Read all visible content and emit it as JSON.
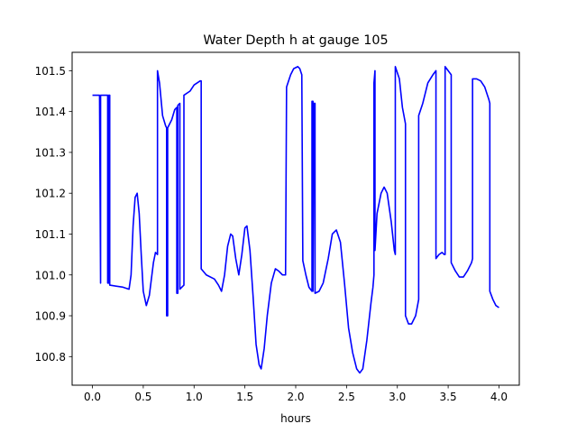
{
  "chart_data": {
    "type": "line",
    "title": "Water Depth h at gauge 105",
    "xlabel": "hours",
    "ylabel": "",
    "xlim": [
      -0.2,
      4.2
    ],
    "ylim": [
      100.73,
      101.545
    ],
    "xticks": [
      0.0,
      0.5,
      1.0,
      1.5,
      2.0,
      2.5,
      3.0,
      3.5,
      4.0
    ],
    "xtick_labels": [
      "0.0",
      "0.5",
      "1.0",
      "1.5",
      "2.0",
      "2.5",
      "3.0",
      "3.5",
      "4.0"
    ],
    "yticks": [
      100.8,
      100.9,
      101.0,
      101.1,
      101.2,
      101.3,
      101.4,
      101.5
    ],
    "ytick_labels": [
      "100.8",
      "100.9",
      "101.0",
      "101.1",
      "101.2",
      "101.3",
      "101.4",
      "101.5"
    ],
    "grid": false,
    "legend": "none",
    "series": [
      {
        "color": "#0000ff",
        "points": [
          [
            0.0,
            101.44
          ],
          [
            0.07,
            101.44
          ],
          [
            0.07,
            101.43
          ],
          [
            0.08,
            100.98
          ],
          [
            0.08,
            101.44
          ],
          [
            0.15,
            101.44
          ],
          [
            0.15,
            100.98
          ],
          [
            0.16,
            100.98
          ],
          [
            0.16,
            101.44
          ],
          [
            0.17,
            101.44
          ],
          [
            0.17,
            100.975
          ],
          [
            0.3,
            100.97
          ],
          [
            0.36,
            100.965
          ],
          [
            0.38,
            101.0
          ],
          [
            0.4,
            101.12
          ],
          [
            0.42,
            101.19
          ],
          [
            0.44,
            101.2
          ],
          [
            0.46,
            101.15
          ],
          [
            0.48,
            101.05
          ],
          [
            0.5,
            100.96
          ],
          [
            0.53,
            100.925
          ],
          [
            0.56,
            100.95
          ],
          [
            0.6,
            101.03
          ],
          [
            0.62,
            101.055
          ],
          [
            0.64,
            101.05
          ],
          [
            0.64,
            101.5
          ],
          [
            0.66,
            101.47
          ],
          [
            0.69,
            101.39
          ],
          [
            0.72,
            101.365
          ],
          [
            0.73,
            101.36
          ],
          [
            0.73,
            100.9
          ],
          [
            0.74,
            100.9
          ],
          [
            0.74,
            101.36
          ],
          [
            0.78,
            101.38
          ],
          [
            0.81,
            101.405
          ],
          [
            0.83,
            101.41
          ],
          [
            0.83,
            100.955
          ],
          [
            0.84,
            100.955
          ],
          [
            0.84,
            101.415
          ],
          [
            0.86,
            101.42
          ],
          [
            0.86,
            100.965
          ],
          [
            0.9,
            100.975
          ],
          [
            0.9,
            101.44
          ],
          [
            0.96,
            101.45
          ],
          [
            1.0,
            101.465
          ],
          [
            1.06,
            101.475
          ],
          [
            1.07,
            101.475
          ],
          [
            1.07,
            101.015
          ],
          [
            1.12,
            101.0
          ],
          [
            1.2,
            100.99
          ],
          [
            1.24,
            100.975
          ],
          [
            1.27,
            100.96
          ],
          [
            1.3,
            101.0
          ],
          [
            1.33,
            101.07
          ],
          [
            1.36,
            101.1
          ],
          [
            1.38,
            101.095
          ],
          [
            1.41,
            101.04
          ],
          [
            1.44,
            101.0
          ],
          [
            1.47,
            101.05
          ],
          [
            1.5,
            101.115
          ],
          [
            1.52,
            101.12
          ],
          [
            1.55,
            101.06
          ],
          [
            1.58,
            100.95
          ],
          [
            1.61,
            100.83
          ],
          [
            1.64,
            100.78
          ],
          [
            1.66,
            100.77
          ],
          [
            1.69,
            100.82
          ],
          [
            1.72,
            100.9
          ],
          [
            1.76,
            100.98
          ],
          [
            1.8,
            101.015
          ],
          [
            1.83,
            101.01
          ],
          [
            1.87,
            101.0
          ],
          [
            1.9,
            101.0
          ],
          [
            1.91,
            101.46
          ],
          [
            1.95,
            101.49
          ],
          [
            1.98,
            101.505
          ],
          [
            2.02,
            101.51
          ],
          [
            2.04,
            101.505
          ],
          [
            2.06,
            101.49
          ],
          [
            2.07,
            101.035
          ],
          [
            2.1,
            101.0
          ],
          [
            2.13,
            100.97
          ],
          [
            2.16,
            100.96
          ],
          [
            2.16,
            101.425
          ],
          [
            2.17,
            101.425
          ],
          [
            2.17,
            100.96
          ],
          [
            2.18,
            101.42
          ],
          [
            2.19,
            101.42
          ],
          [
            2.19,
            100.955
          ],
          [
            2.23,
            100.96
          ],
          [
            2.27,
            100.98
          ],
          [
            2.32,
            101.04
          ],
          [
            2.36,
            101.1
          ],
          [
            2.4,
            101.11
          ],
          [
            2.44,
            101.08
          ],
          [
            2.48,
            100.98
          ],
          [
            2.52,
            100.87
          ],
          [
            2.56,
            100.81
          ],
          [
            2.6,
            100.77
          ],
          [
            2.63,
            100.76
          ],
          [
            2.66,
            100.77
          ],
          [
            2.7,
            100.84
          ],
          [
            2.74,
            100.93
          ],
          [
            2.76,
            100.97
          ],
          [
            2.77,
            101.0
          ],
          [
            2.77,
            101.47
          ],
          [
            2.78,
            101.5
          ],
          [
            2.78,
            101.06
          ],
          [
            2.8,
            101.15
          ],
          [
            2.84,
            101.2
          ],
          [
            2.87,
            101.215
          ],
          [
            2.9,
            101.2
          ],
          [
            2.94,
            101.13
          ],
          [
            2.97,
            101.06
          ],
          [
            2.98,
            101.05
          ],
          [
            2.98,
            101.51
          ],
          [
            3.02,
            101.48
          ],
          [
            3.05,
            101.41
          ],
          [
            3.08,
            101.37
          ],
          [
            3.08,
            100.9
          ],
          [
            3.11,
            100.88
          ],
          [
            3.14,
            100.88
          ],
          [
            3.18,
            100.9
          ],
          [
            3.21,
            100.94
          ],
          [
            3.21,
            101.39
          ],
          [
            3.25,
            101.42
          ],
          [
            3.3,
            101.47
          ],
          [
            3.35,
            101.49
          ],
          [
            3.38,
            101.5
          ],
          [
            3.38,
            101.04
          ],
          [
            3.41,
            101.05
          ],
          [
            3.44,
            101.055
          ],
          [
            3.46,
            101.05
          ],
          [
            3.47,
            101.05
          ],
          [
            3.47,
            101.51
          ],
          [
            3.5,
            101.5
          ],
          [
            3.53,
            101.49
          ],
          [
            3.53,
            101.03
          ],
          [
            3.57,
            101.01
          ],
          [
            3.61,
            100.995
          ],
          [
            3.65,
            100.995
          ],
          [
            3.69,
            101.01
          ],
          [
            3.73,
            101.03
          ],
          [
            3.74,
            101.04
          ],
          [
            3.74,
            101.48
          ],
          [
            3.78,
            101.48
          ],
          [
            3.82,
            101.475
          ],
          [
            3.86,
            101.46
          ],
          [
            3.9,
            101.43
          ],
          [
            3.91,
            101.42
          ],
          [
            3.91,
            100.96
          ],
          [
            3.94,
            100.94
          ],
          [
            3.97,
            100.925
          ],
          [
            4.0,
            100.92
          ]
        ]
      }
    ]
  }
}
